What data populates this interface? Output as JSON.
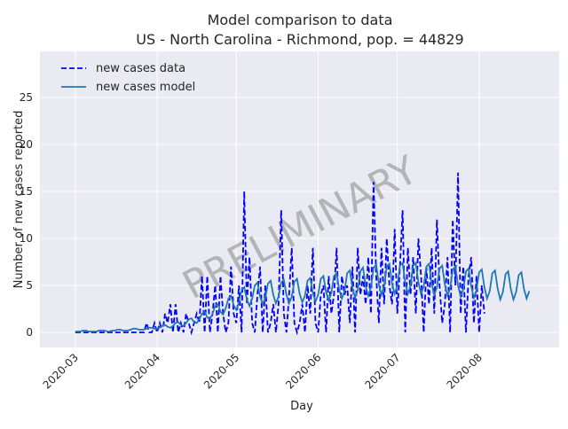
{
  "chart_data": {
    "type": "line",
    "title": "Model comparison to data",
    "subtitle": "US - North Carolina - Richmond, pop. = 44829",
    "x_label": "Day",
    "y_label": "Number of new cases reported",
    "watermark": "PRELIMINARY",
    "x": [
      0,
      1,
      2,
      3,
      4,
      5,
      6,
      7,
      8,
      9,
      10,
      11,
      12,
      13,
      14,
      15,
      16,
      17,
      18,
      19,
      20,
      21,
      22,
      23,
      24,
      25,
      26,
      27,
      28,
      29,
      30,
      31,
      32,
      33,
      34,
      35,
      36,
      37,
      38,
      39,
      40,
      41,
      42,
      43,
      44,
      45,
      46,
      47,
      48,
      49,
      50,
      51,
      52,
      53,
      54,
      55,
      56,
      57,
      58,
      59,
      60,
      61,
      62,
      63,
      64,
      65,
      66,
      67,
      68,
      69,
      70,
      71,
      72,
      73,
      74,
      75,
      76,
      77,
      78,
      79,
      80,
      81,
      82,
      83,
      84,
      85,
      86,
      87,
      88,
      89,
      90,
      91,
      92,
      93,
      94,
      95,
      96,
      97,
      98,
      99,
      100,
      101,
      102,
      103,
      104,
      105,
      106,
      107,
      108,
      109,
      110,
      111,
      112,
      113,
      114,
      115,
      116,
      117,
      118,
      119,
      120,
      121,
      122,
      123,
      124,
      125,
      126,
      127,
      128,
      129,
      130,
      131,
      132,
      133,
      134,
      135,
      136,
      137,
      138,
      139,
      140,
      141,
      142,
      143,
      144,
      145,
      146,
      147,
      148,
      149,
      150,
      151,
      152,
      153,
      154,
      155,
      156,
      157,
      158,
      159,
      160,
      161,
      162,
      163,
      164,
      165,
      166,
      167,
      168,
      169,
      170,
      171,
      172
    ],
    "series": [
      {
        "name": "new cases data",
        "color": "#0000ff",
        "dashed": true,
        "values": [
          0,
          0,
          0,
          0,
          0,
          0,
          0,
          0,
          0,
          0,
          0,
          0,
          0,
          0,
          0,
          0,
          0,
          0,
          0,
          0,
          0,
          0,
          0,
          0,
          0,
          0,
          0,
          1,
          0,
          0,
          1,
          0,
          1,
          0,
          2,
          1,
          3,
          0,
          3,
          0,
          1,
          0,
          2,
          1,
          0,
          1,
          2,
          1,
          6,
          0,
          6,
          0,
          2,
          5,
          0,
          6,
          2,
          0,
          1,
          7,
          2,
          1,
          5,
          0,
          15,
          3,
          8,
          1,
          0,
          4,
          7,
          0,
          5,
          0,
          1,
          3,
          0,
          3,
          13,
          2,
          0,
          4,
          9,
          1,
          0,
          1,
          3,
          0,
          5,
          2,
          9,
          1,
          0,
          4,
          5,
          0,
          6,
          2,
          4,
          9,
          0,
          6,
          4,
          5,
          1,
          7,
          0,
          9,
          4,
          6,
          3,
          8,
          2,
          16,
          6,
          1,
          9,
          3,
          10,
          5,
          3,
          11,
          2,
          7,
          13,
          0,
          9,
          4,
          8,
          2,
          10,
          6,
          0,
          7,
          3,
          9,
          2,
          12,
          5,
          1,
          3,
          8,
          0,
          12,
          5,
          17,
          2,
          7,
          0,
          6,
          8,
          1,
          6,
          0,
          5,
          2,
          null,
          null,
          null,
          null,
          null,
          null,
          null,
          null,
          null,
          null,
          null,
          null,
          null,
          null,
          null,
          null,
          null
        ]
      },
      {
        "name": "new cases model",
        "color": "#1f77b4",
        "dashed": false,
        "values": [
          0.1,
          0.1,
          0.1,
          0.2,
          0.2,
          0.1,
          0.1,
          0.1,
          0.1,
          0.2,
          0.2,
          0.2,
          0.1,
          0.1,
          0.2,
          0.2,
          0.3,
          0.3,
          0.2,
          0.2,
          0.2,
          0.3,
          0.4,
          0.4,
          0.3,
          0.3,
          0.3,
          0.4,
          0.5,
          0.5,
          0.4,
          0.4,
          0.5,
          0.7,
          0.8,
          0.6,
          0.5,
          0.7,
          1.0,
          1.1,
          0.8,
          0.7,
          1.0,
          1.4,
          1.5,
          1.1,
          1.0,
          1.4,
          2.0,
          2.2,
          1.6,
          1.4,
          2.0,
          2.8,
          3.0,
          2.2,
          1.9,
          2.6,
          3.6,
          3.9,
          2.9,
          2.4,
          3.2,
          4.5,
          4.8,
          3.5,
          2.8,
          3.6,
          5.0,
          5.3,
          3.8,
          3.0,
          3.7,
          5.2,
          5.5,
          4.0,
          3.1,
          3.8,
          5.3,
          5.6,
          4.0,
          3.1,
          3.8,
          5.4,
          5.7,
          4.1,
          3.2,
          3.9,
          5.5,
          5.8,
          4.2,
          3.3,
          4.0,
          5.7,
          6.0,
          4.3,
          3.4,
          4.2,
          6.0,
          6.3,
          4.5,
          3.6,
          4.4,
          6.3,
          6.6,
          4.7,
          3.7,
          4.5,
          6.5,
          6.9,
          4.9,
          3.9,
          4.8,
          6.9,
          7.2,
          5.1,
          4.0,
          4.9,
          7.0,
          7.3,
          5.2,
          4.1,
          5.0,
          7.1,
          7.4,
          5.3,
          4.1,
          5.0,
          7.1,
          7.4,
          5.3,
          4.1,
          4.9,
          7.0,
          7.3,
          5.2,
          4.0,
          4.8,
          6.8,
          7.1,
          5.1,
          3.9,
          4.7,
          6.7,
          7.0,
          5.0,
          3.8,
          4.6,
          6.5,
          6.8,
          4.9,
          3.7,
          4.5,
          6.4,
          6.7,
          4.8,
          3.6,
          4.4,
          6.3,
          6.6,
          4.7,
          3.5,
          4.3,
          6.2,
          6.5,
          4.6,
          3.5,
          4.3,
          6.1,
          6.4,
          4.6,
          3.6,
          4.4
        ]
      }
    ],
    "xlim": [
      -13.4,
      183.3
    ],
    "xticks": [
      {
        "value": 0,
        "label": "2020-03"
      },
      {
        "value": 31,
        "label": "2020-04"
      },
      {
        "value": 61,
        "label": "2020-05"
      },
      {
        "value": 92,
        "label": "2020-06"
      },
      {
        "value": 122,
        "label": "2020-07"
      },
      {
        "value": 153,
        "label": "2020-08"
      }
    ],
    "ylim": [
      -1.6,
      29.9
    ],
    "yticks": [
      0,
      5,
      10,
      15,
      20,
      25
    ],
    "grid": true,
    "legend": "upper left"
  }
}
